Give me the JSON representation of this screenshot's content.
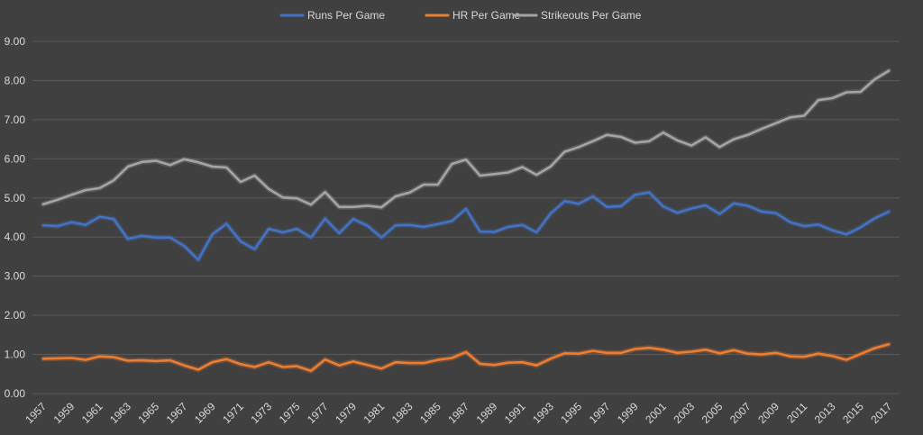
{
  "chart_data": {
    "type": "line",
    "title": "",
    "xlabel": "",
    "ylabel": "",
    "legend_position": "top",
    "grid": true,
    "ylim": [
      0,
      9
    ],
    "yticks": [
      "0.00",
      "1.00",
      "2.00",
      "3.00",
      "4.00",
      "5.00",
      "6.00",
      "7.00",
      "8.00",
      "9.00"
    ],
    "x": [
      1957,
      1958,
      1959,
      1960,
      1961,
      1962,
      1963,
      1964,
      1965,
      1966,
      1967,
      1968,
      1969,
      1970,
      1971,
      1972,
      1973,
      1974,
      1975,
      1976,
      1977,
      1978,
      1979,
      1980,
      1981,
      1982,
      1983,
      1984,
      1985,
      1986,
      1987,
      1988,
      1989,
      1990,
      1991,
      1992,
      1993,
      1994,
      1995,
      1996,
      1997,
      1998,
      1999,
      2000,
      2001,
      2002,
      2003,
      2004,
      2005,
      2006,
      2007,
      2008,
      2009,
      2010,
      2011,
      2012,
      2013,
      2014,
      2015,
      2016,
      2017
    ],
    "xtick_labels": [
      "1957",
      "1959",
      "1961",
      "1963",
      "1965",
      "1967",
      "1969",
      "1971",
      "1973",
      "1975",
      "1977",
      "1979",
      "1981",
      "1983",
      "1985",
      "1987",
      "1989",
      "1991",
      "1993",
      "1995",
      "1997",
      "1999",
      "2001",
      "2003",
      "2005",
      "2007",
      "2009",
      "2011",
      "2013",
      "2015",
      "2017"
    ],
    "series": [
      {
        "name": "Runs Per Game",
        "color": "#4472c4",
        "values": [
          4.3,
          4.28,
          4.38,
          4.31,
          4.52,
          4.46,
          3.95,
          4.03,
          3.99,
          3.99,
          3.77,
          3.42,
          4.07,
          4.34,
          3.89,
          3.69,
          4.21,
          4.12,
          4.21,
          3.99,
          4.47,
          4.1,
          4.46,
          4.29,
          3.99,
          4.3,
          4.31,
          4.26,
          4.33,
          4.41,
          4.72,
          4.14,
          4.13,
          4.26,
          4.31,
          4.12,
          4.6,
          4.92,
          4.85,
          5.04,
          4.77,
          4.79,
          5.08,
          5.14,
          4.78,
          4.62,
          4.73,
          4.81,
          4.59,
          4.86,
          4.8,
          4.65,
          4.61,
          4.38,
          4.28,
          4.32,
          4.17,
          4.07,
          4.25,
          4.48,
          4.65
        ]
      },
      {
        "name": "HR Per Game",
        "color": "#ed7d31",
        "values": [
          0.89,
          0.9,
          0.91,
          0.86,
          0.95,
          0.93,
          0.84,
          0.85,
          0.83,
          0.85,
          0.72,
          0.61,
          0.8,
          0.88,
          0.75,
          0.68,
          0.8,
          0.68,
          0.7,
          0.58,
          0.87,
          0.72,
          0.82,
          0.73,
          0.64,
          0.8,
          0.78,
          0.78,
          0.86,
          0.91,
          1.06,
          0.76,
          0.73,
          0.79,
          0.8,
          0.72,
          0.89,
          1.03,
          1.02,
          1.09,
          1.04,
          1.04,
          1.14,
          1.17,
          1.12,
          1.04,
          1.07,
          1.12,
          1.03,
          1.11,
          1.02,
          1.0,
          1.04,
          0.95,
          0.94,
          1.02,
          0.96,
          0.86,
          1.01,
          1.16,
          1.26
        ]
      },
      {
        "name": "Strikeouts Per Game",
        "color": "#a5a5a5",
        "values": [
          4.84,
          4.95,
          5.08,
          5.2,
          5.25,
          5.45,
          5.8,
          5.92,
          5.95,
          5.84,
          5.99,
          5.91,
          5.8,
          5.78,
          5.41,
          5.57,
          5.23,
          5.01,
          4.99,
          4.83,
          5.15,
          4.77,
          4.77,
          4.8,
          4.76,
          5.04,
          5.14,
          5.34,
          5.34,
          5.87,
          5.98,
          5.57,
          5.61,
          5.65,
          5.79,
          5.59,
          5.8,
          6.18,
          6.3,
          6.45,
          6.61,
          6.56,
          6.41,
          6.45,
          6.67,
          6.47,
          6.34,
          6.55,
          6.3,
          6.5,
          6.61,
          6.77,
          6.91,
          7.06,
          7.1,
          7.5,
          7.55,
          7.7,
          7.71,
          8.03,
          8.25
        ]
      }
    ]
  }
}
